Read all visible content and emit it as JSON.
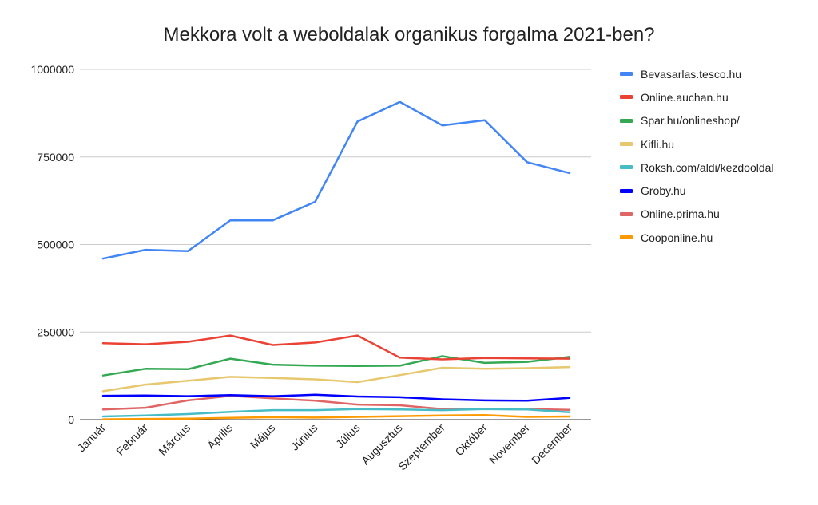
{
  "chart_data": {
    "type": "line",
    "title": "Mekkora volt a weboldalak organikus forgalma 2021-ben?",
    "xlabel": "",
    "ylabel": "",
    "ylim": [
      0,
      1000000
    ],
    "yticks": [
      {
        "value": 0,
        "label": "0"
      },
      {
        "value": 250000,
        "label": "250000"
      },
      {
        "value": 500000,
        "label": "500000"
      },
      {
        "value": 750000,
        "label": "750000"
      },
      {
        "value": 1000000,
        "label": "1000000"
      }
    ],
    "grid": true,
    "legend_position": "right",
    "categories": [
      "Január",
      "Február",
      "Március",
      "Április",
      "Május",
      "Június",
      "Július",
      "Augusztus",
      "Szeptember",
      "Október",
      "November",
      "December"
    ],
    "series": [
      {
        "name": "Bevasarlas.tesco.hu",
        "color": "#4285f4",
        "values": [
          460000,
          485000,
          481000,
          569000,
          569000,
          622000,
          851000,
          907000,
          840000,
          855000,
          735000,
          704000
        ]
      },
      {
        "name": "Online.auchan.hu",
        "color": "#ea4335",
        "values": [
          218000,
          215000,
          222000,
          240000,
          213000,
          220000,
          240000,
          177000,
          172000,
          176000,
          175000,
          174000
        ]
      },
      {
        "name": "Spar.hu/onlineshop/",
        "color": "#34a853",
        "values": [
          126000,
          145000,
          144000,
          174000,
          157000,
          154000,
          153000,
          154000,
          181000,
          162000,
          165000,
          179000
        ]
      },
      {
        "name": "Kifli.hu",
        "color": "#e7c86e",
        "values": [
          81000,
          100000,
          111000,
          122000,
          119000,
          115000,
          107000,
          127000,
          148000,
          145000,
          147000,
          150000
        ]
      },
      {
        "name": "Roksh.com/aldi/kezdooldal",
        "color": "#46bdc6",
        "values": [
          9000,
          12000,
          16000,
          22000,
          27000,
          27000,
          30000,
          29000,
          27000,
          30000,
          29000,
          21000
        ]
      },
      {
        "name": "Groby.hu",
        "color": "#0000ff",
        "values": [
          68000,
          69000,
          67000,
          70000,
          67000,
          71000,
          66000,
          64000,
          58000,
          55000,
          54000,
          62000
        ]
      },
      {
        "name": "Online.prima.hu",
        "color": "#e06666",
        "values": [
          29000,
          34000,
          55000,
          68000,
          61000,
          54000,
          43000,
          41000,
          30000,
          30000,
          30000,
          28000
        ]
      },
      {
        "name": "Cooponline.hu",
        "color": "#ff9900",
        "values": [
          1000,
          2000,
          3000,
          5000,
          7000,
          6000,
          8000,
          10000,
          12000,
          13000,
          8000,
          9000
        ]
      }
    ]
  }
}
